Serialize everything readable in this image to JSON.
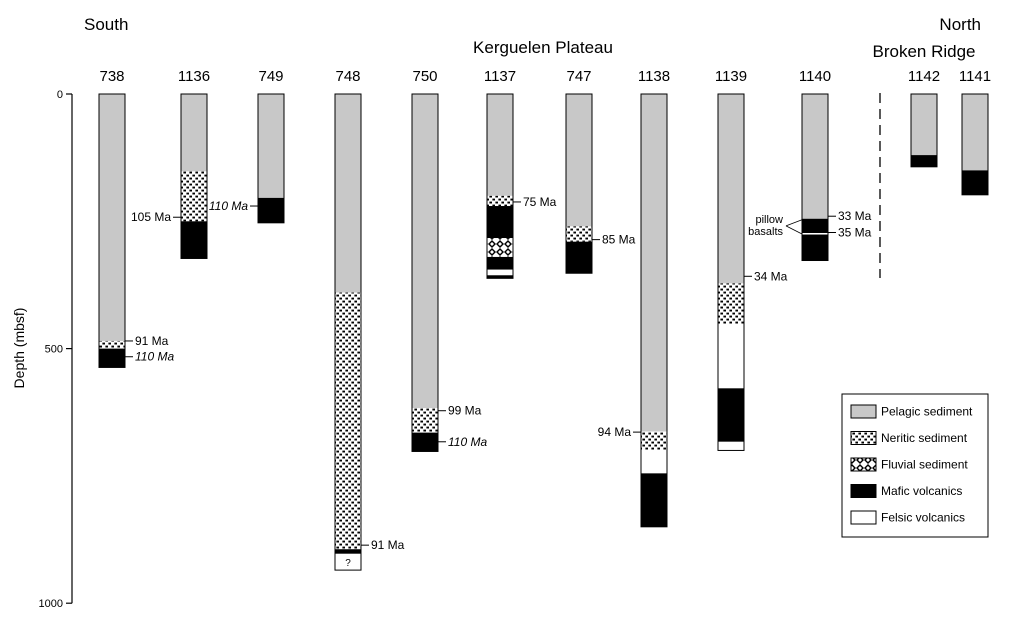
{
  "headers": {
    "south": "South",
    "north": "North",
    "kerguelen": "Kerguelen Plateau",
    "broken_ridge": "Broken Ridge"
  },
  "axis": {
    "label": "Depth (mbsf)",
    "min": 0,
    "max": 1000,
    "ticks": [
      0,
      500,
      1000
    ]
  },
  "colors": {
    "pelagic": "#c8c8c8",
    "neritic_bg": "#ffffff",
    "neritic_dots": "#000000",
    "fluvial_bg": "#ffffff",
    "mafic": "#000000",
    "felsic": "#ffffff",
    "outline": "#000000"
  },
  "legend": {
    "items": [
      {
        "key": "pelagic",
        "label": "Pelagic sediment"
      },
      {
        "key": "neritic",
        "label": "Neritic sediment"
      },
      {
        "key": "fluvial",
        "label": "Fluvial sediment"
      },
      {
        "key": "mafic",
        "label": "Mafic volcanics"
      },
      {
        "key": "felsic",
        "label": "Felsic volcanics"
      }
    ]
  },
  "columns": [
    {
      "site": "738",
      "layers": [
        [
          0,
          485,
          "pelagic"
        ],
        [
          485,
          500,
          "neritic"
        ],
        [
          500,
          537,
          "mafic"
        ]
      ],
      "annotations": [
        {
          "depth": 485,
          "text": "91 Ma",
          "side": "right",
          "italic": false
        },
        {
          "depth": 516,
          "text": "110 Ma",
          "side": "right",
          "italic": true
        }
      ]
    },
    {
      "site": "1136",
      "layers": [
        [
          0,
          152,
          "pelagic"
        ],
        [
          152,
          250,
          "neritic"
        ],
        [
          250,
          323,
          "mafic"
        ]
      ],
      "annotations": [
        {
          "depth": 242,
          "text": "105 Ma",
          "side": "left",
          "italic": false
        }
      ]
    },
    {
      "site": "749",
      "layers": [
        [
          0,
          204,
          "pelagic"
        ],
        [
          204,
          253,
          "mafic"
        ]
      ],
      "annotations": [
        {
          "depth": 220,
          "text": "110 Ma",
          "side": "left",
          "italic": true
        }
      ]
    },
    {
      "site": "748",
      "layers": [
        [
          0,
          390,
          "pelagic"
        ],
        [
          390,
          894,
          "neritic"
        ],
        [
          894,
          903,
          "mafic"
        ],
        [
          903,
          935,
          "felsic",
          "?"
        ]
      ],
      "annotations": [
        {
          "depth": 886,
          "text": "91 Ma",
          "side": "right",
          "italic": false
        }
      ]
    },
    {
      "site": "750",
      "layers": [
        [
          0,
          617,
          "pelagic"
        ],
        [
          617,
          665,
          "neritic"
        ],
        [
          665,
          702,
          "mafic"
        ]
      ],
      "annotations": [
        {
          "depth": 622,
          "text": "99 Ma",
          "side": "right",
          "italic": false
        },
        {
          "depth": 683,
          "text": "110 Ma",
          "side": "right",
          "italic": true
        }
      ]
    },
    {
      "site": "1137",
      "layers": [
        [
          0,
          200,
          "pelagic"
        ],
        [
          200,
          220,
          "neritic"
        ],
        [
          220,
          283,
          "mafic"
        ],
        [
          283,
          320,
          "fluvial"
        ],
        [
          320,
          345,
          "mafic"
        ],
        [
          345,
          356,
          "felsic"
        ],
        [
          356,
          362,
          "mafic"
        ]
      ],
      "annotations": [
        {
          "depth": 212,
          "text": "75 Ma",
          "side": "right",
          "italic": false
        }
      ]
    },
    {
      "site": "747",
      "layers": [
        [
          0,
          260,
          "pelagic"
        ],
        [
          260,
          290,
          "neritic"
        ],
        [
          290,
          352,
          "mafic"
        ]
      ],
      "annotations": [
        {
          "depth": 286,
          "text": "85 Ma",
          "side": "right",
          "italic": false
        }
      ]
    },
    {
      "site": "1138",
      "layers": [
        [
          0,
          663,
          "pelagic"
        ],
        [
          663,
          700,
          "neritic"
        ],
        [
          700,
          745,
          "felsic"
        ],
        [
          745,
          850,
          "mafic"
        ]
      ],
      "annotations": [
        {
          "depth": 664,
          "text": "94 Ma",
          "side": "left",
          "italic": false
        }
      ]
    },
    {
      "site": "1139",
      "layers": [
        [
          0,
          372,
          "pelagic"
        ],
        [
          372,
          452,
          "neritic"
        ],
        [
          452,
          578,
          "felsic"
        ],
        [
          578,
          683,
          "mafic"
        ],
        [
          683,
          700,
          "felsic"
        ]
      ],
      "annotations": [
        {
          "depth": 358,
          "text": "34 Ma",
          "side": "right",
          "italic": false
        }
      ]
    },
    {
      "site": "1140",
      "layers": [
        [
          0,
          245,
          "pelagic"
        ],
        [
          245,
          273,
          "mafic"
        ],
        [
          273,
          276,
          "felsic"
        ],
        [
          276,
          327,
          "mafic"
        ]
      ],
      "annotations": [
        {
          "depth": 240,
          "text": "33 Ma",
          "side": "right",
          "italic": false
        },
        {
          "depth": 272,
          "text": "35 Ma",
          "side": "right",
          "italic": false
        }
      ]
    },
    {
      "site": "1142",
      "layers": [
        [
          0,
          120,
          "pelagic"
        ],
        [
          120,
          143,
          "mafic"
        ]
      ],
      "annotations": []
    },
    {
      "site": "1141",
      "layers": [
        [
          0,
          150,
          "pelagic"
        ],
        [
          150,
          198,
          "mafic"
        ]
      ],
      "annotations": []
    }
  ],
  "pillow_callout": {
    "site": "1140",
    "lines": [
      "pillow",
      "basalts"
    ],
    "depths": [
      245,
      273
    ]
  }
}
